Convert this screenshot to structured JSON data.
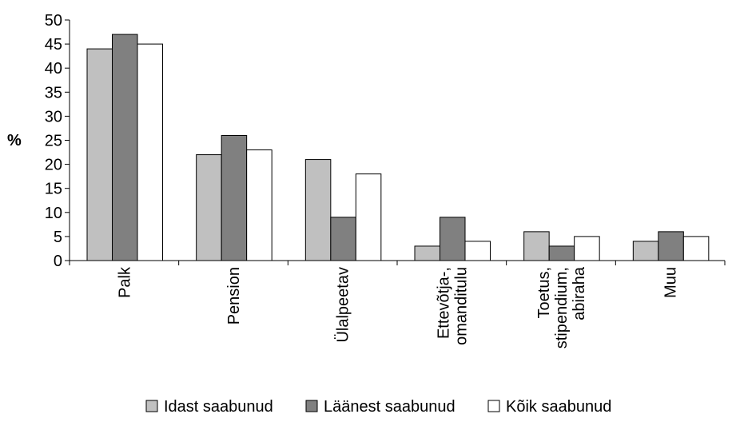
{
  "chart_data": {
    "type": "bar",
    "title": "",
    "xlabel": "",
    "ylabel": "%",
    "ylim": [
      0,
      50
    ],
    "yticks": [
      0,
      5,
      10,
      15,
      20,
      25,
      30,
      35,
      40,
      45,
      50
    ],
    "grid": false,
    "legend_position": "bottom",
    "categories": [
      [
        "Palk"
      ],
      [
        "Pension"
      ],
      [
        "Ülalpeetav"
      ],
      [
        "Ettevõtja-,",
        "omanditulu"
      ],
      [
        "Toetus,",
        "stipendium,",
        "abiraha"
      ],
      [
        "Muu"
      ]
    ],
    "series": [
      {
        "name": "Idast saabunud",
        "color": "#c0c0c0",
        "values": [
          44,
          22,
          21,
          3,
          6,
          4
        ]
      },
      {
        "name": "Läänest saabunud",
        "color": "#808080",
        "values": [
          47,
          26,
          9,
          9,
          3,
          6
        ]
      },
      {
        "name": "Kõik saabunud",
        "color": "#ffffff",
        "values": [
          45,
          23,
          18,
          4,
          5,
          5
        ]
      }
    ]
  }
}
